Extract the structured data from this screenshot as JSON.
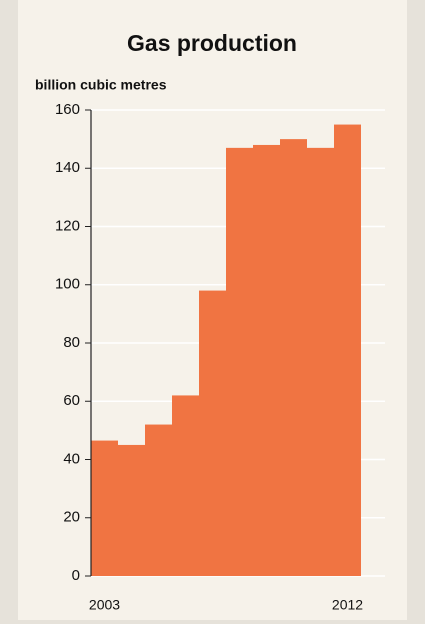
{
  "chart_data": {
    "type": "bar",
    "title": "Gas production",
    "subtitle": "billion cubic metres",
    "categories": [
      "2003",
      null,
      null,
      null,
      null,
      null,
      null,
      null,
      null,
      "2012"
    ],
    "values": [
      46.5,
      45,
      52,
      62,
      98,
      147,
      148,
      150,
      147,
      155
    ],
    "color": "#f07442",
    "ylim": [
      0,
      160
    ],
    "yticks": [
      0,
      20,
      40,
      60,
      80,
      100,
      120,
      140,
      160
    ],
    "grid": true
  }
}
